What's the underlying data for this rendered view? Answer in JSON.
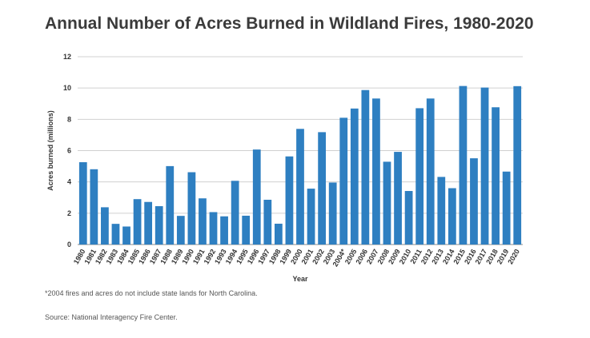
{
  "title": "Annual Number of Acres Burned in Wildland Fires, 1980-2020",
  "footnote": "*2004 fires and acres do not include state lands for North Carolina.",
  "source": "Source: National Interagency Fire Center.",
  "chart_data": {
    "type": "bar",
    "xlabel": "Year",
    "ylabel": "Acres burned (millions)",
    "ylim": [
      0,
      12
    ],
    "yticks": [
      0,
      2,
      4,
      6,
      8,
      10,
      12
    ],
    "grid": true,
    "bar_color": "#2e7fc1",
    "categories": [
      "1980",
      "1981",
      "1982",
      "1983",
      "1984",
      "1985",
      "1986",
      "1987",
      "1988",
      "1989",
      "1990",
      "1991",
      "1992",
      "1993",
      "1994",
      "1995",
      "1996",
      "1997",
      "1998",
      "1999",
      "2000",
      "2001",
      "2002",
      "2003",
      "2004*",
      "2005",
      "2006",
      "2007",
      "2008",
      "2009",
      "2010",
      "2011",
      "2012",
      "2013",
      "2014",
      "2015",
      "2016",
      "2017",
      "2018",
      "2019",
      "2020"
    ],
    "values": [
      5.26,
      4.81,
      2.38,
      1.32,
      1.15,
      2.9,
      2.72,
      2.45,
      5.01,
      1.83,
      4.62,
      2.95,
      2.07,
      1.8,
      4.07,
      1.84,
      6.07,
      2.86,
      1.33,
      5.63,
      7.39,
      3.57,
      7.18,
      3.96,
      8.1,
      8.69,
      9.87,
      9.33,
      5.29,
      5.92,
      3.42,
      8.71,
      9.33,
      4.32,
      3.6,
      10.13,
      5.51,
      10.03,
      8.77,
      4.66,
      10.12
    ]
  }
}
